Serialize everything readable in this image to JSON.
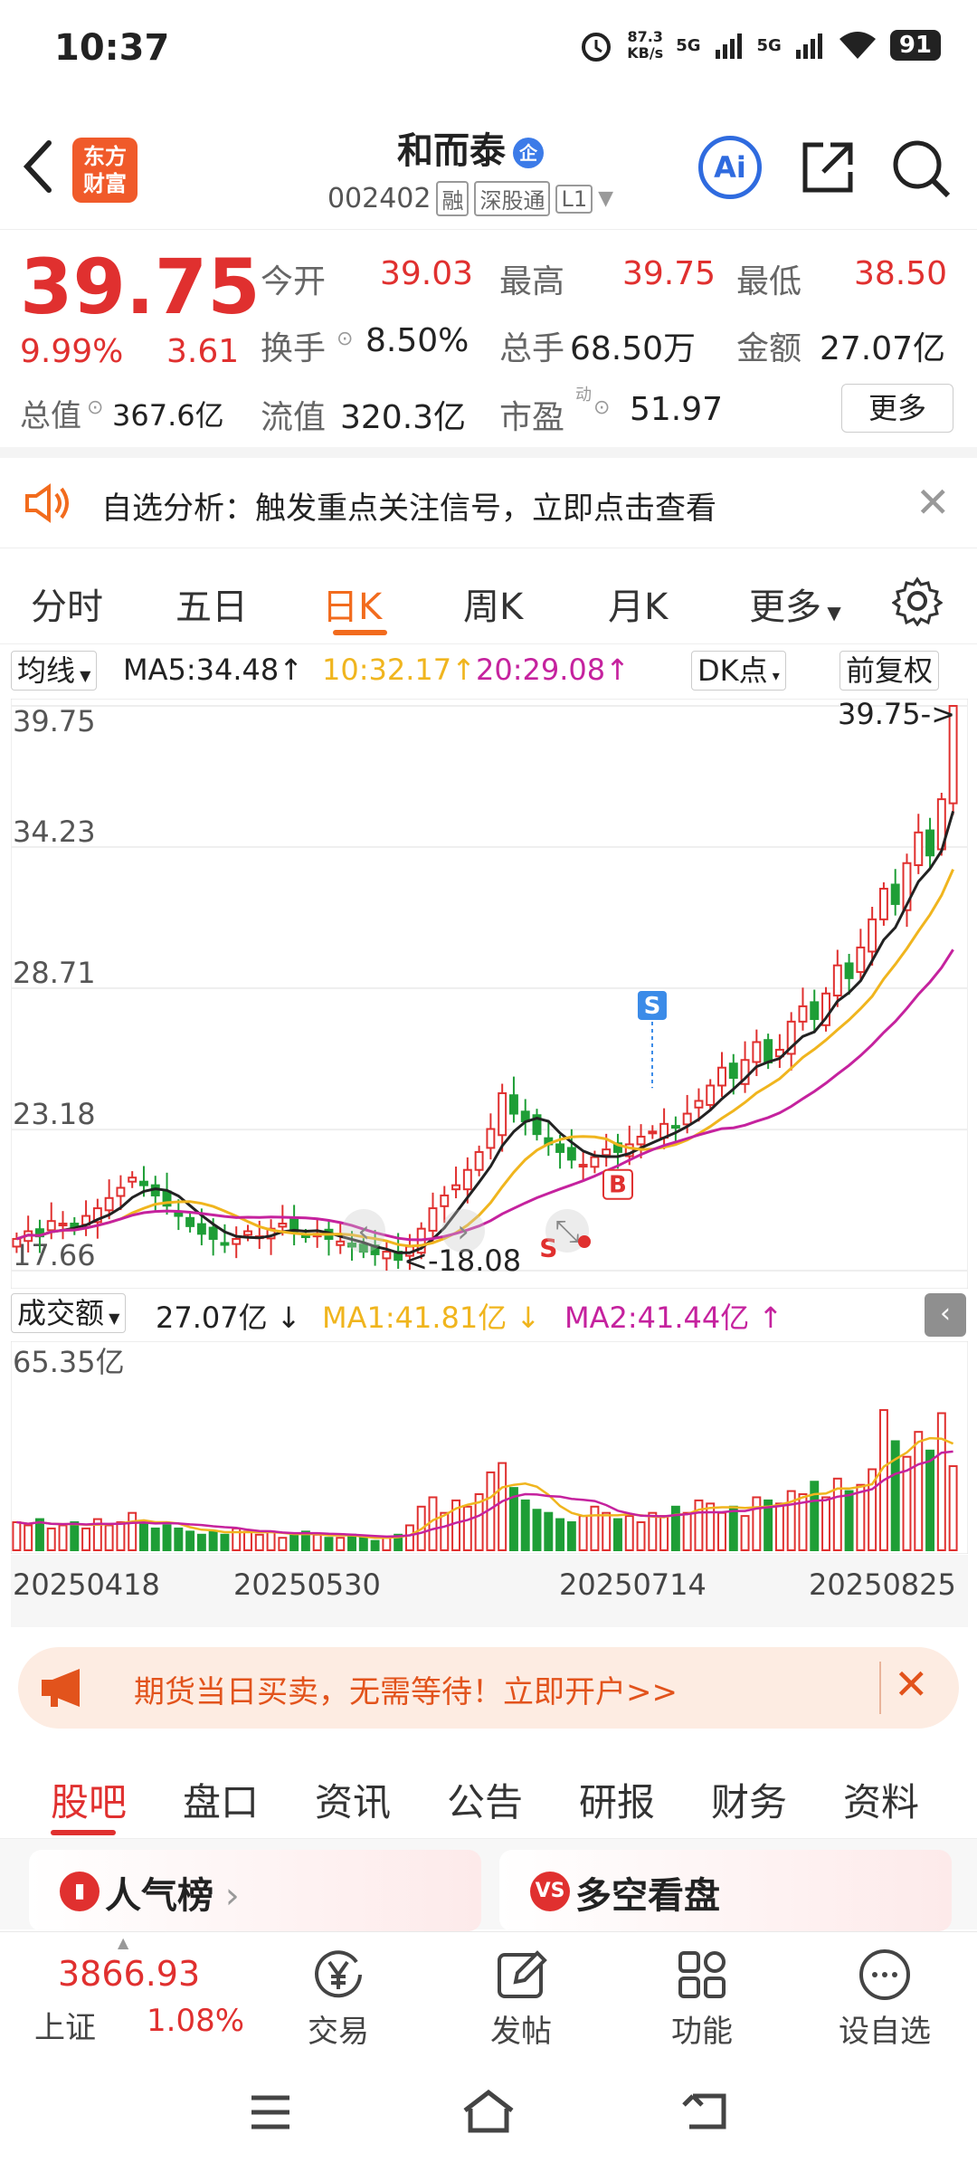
{
  "status_bar": {
    "time": "10:37",
    "net_speed": "87.3\nKB/s",
    "signal1": "5G",
    "signal2": "5G",
    "battery": "91"
  },
  "header": {
    "logo_text": "东方\n财富",
    "title": "和而泰",
    "qi_badge": "企",
    "code": "002402",
    "tags": [
      "融",
      "深股通",
      "L1"
    ]
  },
  "quote": {
    "price": "39.75",
    "change_pct": "9.99%",
    "change": "3.61",
    "open_label": "今开",
    "open": "39.03",
    "high_label": "最高",
    "high": "39.75",
    "low_label": "最低",
    "low": "38.50",
    "turnover_label": "换手",
    "turnover": "8.50%",
    "volume_label": "总手",
    "volume": "68.50万",
    "amount_label": "金额",
    "amount": "27.07亿",
    "mktcap_label": "总值",
    "mktcap": "367.6亿",
    "float_label": "流值",
    "float_cap": "320.3亿",
    "pe_label": "市盈",
    "pe_sup": "动",
    "pe": "51.97",
    "more": "更多"
  },
  "notice": {
    "text": "自选分析：触发重点关注信号，立即点击查看"
  },
  "k_tabs": [
    "分时",
    "五日",
    "日K",
    "周K",
    "月K",
    "更多"
  ],
  "ma_row": {
    "selector": "均线",
    "ma5": "MA5:34.48",
    "ma10": "10:32.17",
    "ma20": "20:29.08",
    "dk": "DK点",
    "fq": "前复权"
  },
  "chart_data": {
    "type": "candlestick",
    "y_ticks": [
      "39.75",
      "34.23",
      "28.71",
      "23.18",
      "17.66"
    ],
    "ylim": [
      17.66,
      39.75
    ],
    "max_label": "39.75->",
    "min_label": "<-18.08",
    "signal_s": "S",
    "signal_b": "B",
    "closes": [
      18.9,
      19.2,
      19.0,
      19.6,
      19.5,
      19.3,
      19.8,
      20.1,
      20.5,
      20.9,
      21.3,
      21.0,
      20.6,
      20.2,
      19.8,
      19.4,
      19.1,
      18.9,
      18.7,
      18.9,
      19.2,
      19.0,
      19.3,
      19.5,
      19.2,
      19.0,
      19.1,
      18.9,
      18.8,
      18.6,
      18.4,
      18.3,
      18.4,
      18.08,
      18.6,
      19.3,
      20.1,
      20.6,
      21.0,
      21.6,
      22.3,
      23.2,
      24.6,
      23.8,
      23.5,
      23.0,
      22.6,
      22.3,
      22.0,
      21.8,
      22.1,
      22.4,
      22.3,
      22.6,
      22.9,
      23.1,
      23.4,
      23.3,
      23.8,
      24.3,
      24.9,
      25.6,
      25.2,
      25.9,
      26.6,
      25.8,
      26.3,
      27.4,
      28.0,
      27.5,
      28.5,
      29.6,
      29.1,
      30.3,
      31.4,
      32.6,
      32.0,
      33.6,
      34.8,
      33.9,
      36.1,
      39.75
    ],
    "volume": {
      "label": "成交额",
      "value": "27.07亿",
      "ma1": "MA1:41.81亿",
      "ma2": "MA2:41.44亿",
      "ymax_label": "65.35亿",
      "values": [
        9,
        8,
        10,
        7,
        8,
        9,
        7,
        10,
        8,
        9,
        12,
        9,
        7,
        8,
        7,
        6,
        5,
        6,
        5,
        7,
        6,
        5,
        6,
        4,
        5,
        6,
        5,
        4,
        4,
        5,
        4,
        3,
        4,
        5,
        8,
        14,
        17,
        12,
        16,
        14,
        18,
        25,
        28,
        20,
        16,
        13,
        12,
        10,
        9,
        11,
        14,
        12,
        10,
        11,
        9,
        12,
        11,
        14,
        12,
        16,
        15,
        12,
        14,
        11,
        17,
        16,
        15,
        19,
        18,
        22,
        17,
        23,
        19,
        21,
        26,
        45,
        35,
        30,
        38,
        32,
        44,
        27
      ]
    },
    "x_labels": [
      "20250418",
      "20250530",
      "20250714",
      "20250825"
    ]
  },
  "ad": {
    "text": "期货当日买卖，无需等待！立即开户>>"
  },
  "bottom_tabs": [
    "股吧",
    "盘口",
    "资讯",
    "公告",
    "研报",
    "财务",
    "资料"
  ],
  "cards": [
    {
      "title": "人气榜",
      "icon": "chart"
    },
    {
      "title": "多空看盘",
      "icon": "VS"
    }
  ],
  "bottom_nav": {
    "index_value": "3866.93",
    "index_name": "上证",
    "index_pct": "1.08%",
    "items": [
      "交易",
      "发帖",
      "功能",
      "设自选"
    ]
  },
  "colors": {
    "up": "#e0302f",
    "down": "#1e9e36",
    "accent": "#f26b1d",
    "ma5": "#222222",
    "ma10": "#f0b51e",
    "ma20": "#c5229e"
  }
}
